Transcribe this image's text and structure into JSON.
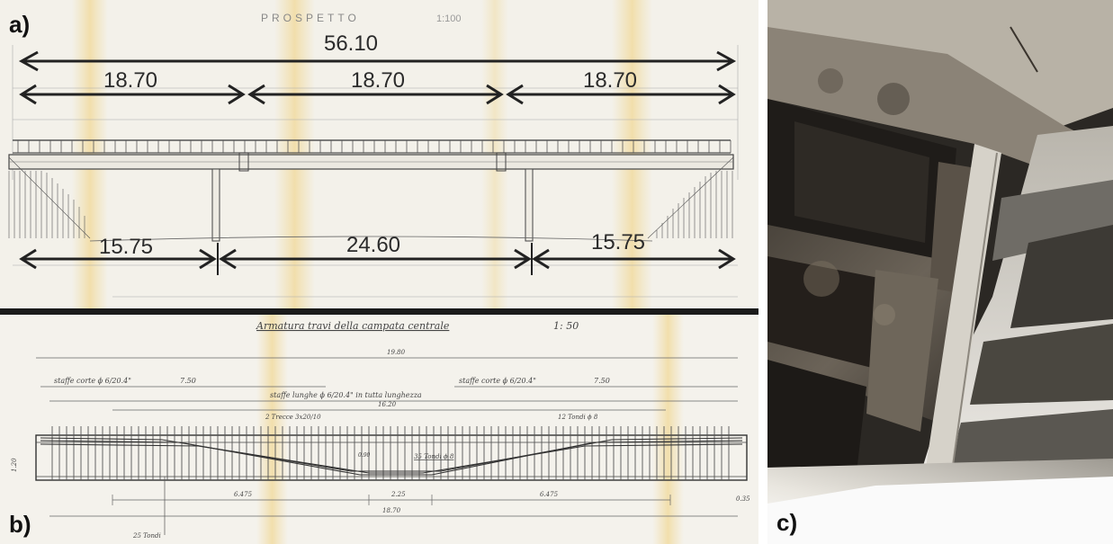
{
  "panels": {
    "a": {
      "letter": "a)",
      "title": "PROSPETTO",
      "scale": "1:100",
      "total_span": "56.10",
      "deck_spans": [
        "18.70",
        "18.70",
        "18.70"
      ],
      "pier_spans": [
        "15.75",
        "24.60",
        "15.75"
      ]
    },
    "b": {
      "letter": "b)",
      "title": "Armatura travi della campata centrale",
      "scale": "1: 50",
      "total_top": "19.80",
      "stirrups_left": "staffe corte ϕ 6/20.4\"",
      "stirrups_left_len": "7.50",
      "stirrups_right": "staffe corte ϕ 6/20.4\"",
      "stirrups_right_len": "7.50",
      "stirrups_long": "staffe lunghe ϕ 6/20.4\" in tutta lunghezza",
      "inner_length": "16.20",
      "note_left": "2 Trecce 3x20/10",
      "note_right": "12 Tondi ϕ 8",
      "note_center": "35 Tondi ϕ 8",
      "height_label": "1.20",
      "depth_label": "0.90",
      "dims_bottom": [
        "6.475",
        "2.25",
        "6.475"
      ],
      "end_label": "0.35",
      "total_bottom": "18.70",
      "note_bottom": "25 Tondi"
    },
    "c": {
      "letter": "c)"
    }
  }
}
